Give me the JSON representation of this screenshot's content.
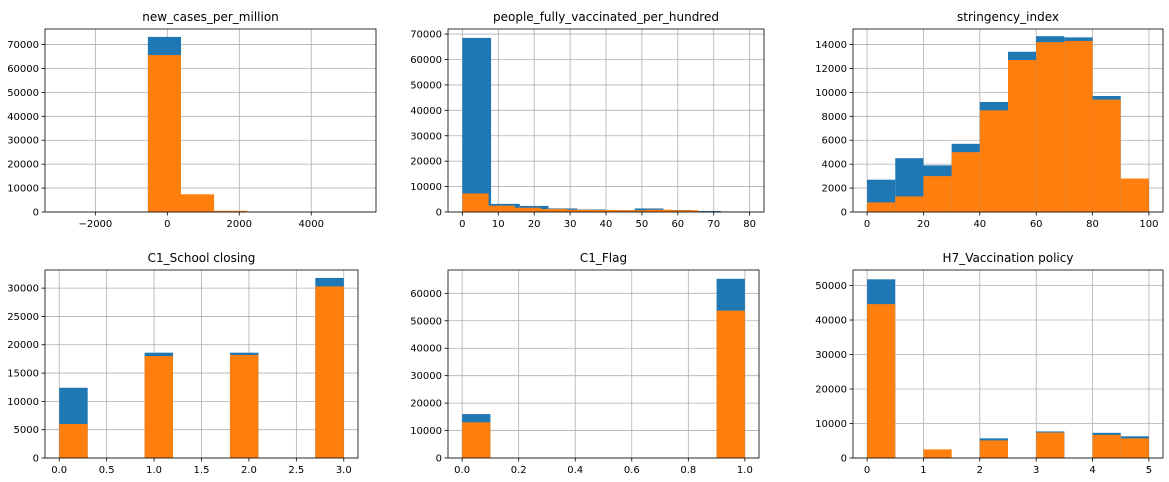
{
  "chart_data": [
    {
      "type": "bar",
      "subtype": "histogram-overlay",
      "title": "new_cases_per_million",
      "xlim": [
        -3400,
        5800
      ],
      "ylim": [
        0,
        76500
      ],
      "xticks": [
        -2000,
        0,
        2000,
        4000
      ],
      "xtick_labels": [
        "−2000",
        "0",
        "2000",
        "4000"
      ],
      "yticks": [
        0,
        10000,
        20000,
        30000,
        40000,
        50000,
        60000,
        70000
      ],
      "grid": true,
      "series": [
        {
          "color": "#1f77b4",
          "bins": [
            {
              "x0": -540,
              "x1": 380,
              "count": 73200
            }
          ]
        },
        {
          "color": "#ff7f0e",
          "bins": [
            {
              "x0": -540,
              "x1": 380,
              "count": 65600
            },
            {
              "x0": 380,
              "x1": 1300,
              "count": 7400
            },
            {
              "x0": 1300,
              "x1": 2220,
              "count": 500
            },
            {
              "x0": 2220,
              "x1": 3140,
              "count": 80
            },
            {
              "x0": 3140,
              "x1": 4060,
              "count": 30
            },
            {
              "x0": 4060,
              "x1": 4980,
              "count": 20
            }
          ]
        }
      ]
    },
    {
      "type": "bar",
      "subtype": "histogram-overlay",
      "title": "people_fully_vaccinated_per_hundred",
      "xlim": [
        -4,
        84
      ],
      "ylim": [
        0,
        72000
      ],
      "xticks": [
        0,
        10,
        20,
        30,
        40,
        50,
        60,
        70,
        80
      ],
      "xtick_labels": [
        "0",
        "10",
        "20",
        "30",
        "40",
        "50",
        "60",
        "70",
        "80"
      ],
      "yticks": [
        0,
        10000,
        20000,
        30000,
        40000,
        50000,
        60000,
        70000
      ],
      "grid": true,
      "series": [
        {
          "color": "#1f77b4",
          "bins": [
            {
              "x0": 0,
              "x1": 8,
              "count": 68500
            },
            {
              "x0": 8,
              "x1": 16,
              "count": 3200
            },
            {
              "x0": 16,
              "x1": 24,
              "count": 2400
            },
            {
              "x0": 24,
              "x1": 32,
              "count": 1400
            },
            {
              "x0": 32,
              "x1": 40,
              "count": 1000
            },
            {
              "x0": 40,
              "x1": 48,
              "count": 700
            },
            {
              "x0": 48,
              "x1": 56,
              "count": 1400
            },
            {
              "x0": 56,
              "x1": 64,
              "count": 800
            },
            {
              "x0": 64,
              "x1": 72,
              "count": 400
            },
            {
              "x0": 72,
              "x1": 80,
              "count": 100
            }
          ]
        },
        {
          "color": "#ff7f0e",
          "bins": [
            {
              "x0": 0,
              "x1": 7.3,
              "count": 7300
            },
            {
              "x0": 7.3,
              "x1": 14.6,
              "count": 2500
            },
            {
              "x0": 14.6,
              "x1": 21.9,
              "count": 1700
            },
            {
              "x0": 21.9,
              "x1": 29.2,
              "count": 1200
            },
            {
              "x0": 29.2,
              "x1": 36.5,
              "count": 900
            },
            {
              "x0": 36.5,
              "x1": 43.8,
              "count": 800
            },
            {
              "x0": 43.8,
              "x1": 51.1,
              "count": 700
            },
            {
              "x0": 51.1,
              "x1": 58.4,
              "count": 900
            },
            {
              "x0": 58.4,
              "x1": 65.7,
              "count": 700
            },
            {
              "x0": 65.7,
              "x1": 73,
              "count": 200
            }
          ]
        }
      ]
    },
    {
      "type": "bar",
      "subtype": "histogram-overlay",
      "title": "stringency_index",
      "xlim": [
        -5,
        105
      ],
      "ylim": [
        0,
        15300
      ],
      "xticks": [
        0,
        20,
        40,
        60,
        80,
        100
      ],
      "xtick_labels": [
        "0",
        "20",
        "40",
        "60",
        "80",
        "100"
      ],
      "yticks": [
        0,
        2000,
        4000,
        6000,
        8000,
        10000,
        12000,
        14000
      ],
      "grid": true,
      "series": [
        {
          "color": "#1f77b4",
          "bins": [
            {
              "x0": 0,
              "x1": 10,
              "count": 2700
            },
            {
              "x0": 10,
              "x1": 20,
              "count": 4500
            },
            {
              "x0": 20,
              "x1": 30,
              "count": 3900
            },
            {
              "x0": 30,
              "x1": 40,
              "count": 5700
            },
            {
              "x0": 40,
              "x1": 50,
              "count": 9200
            },
            {
              "x0": 50,
              "x1": 60,
              "count": 13400
            },
            {
              "x0": 60,
              "x1": 70,
              "count": 14700
            },
            {
              "x0": 70,
              "x1": 80,
              "count": 14600
            },
            {
              "x0": 80,
              "x1": 90,
              "count": 9700
            },
            {
              "x0": 90,
              "x1": 100,
              "count": 2700
            }
          ]
        },
        {
          "color": "#ff7f0e",
          "bins": [
            {
              "x0": 0,
              "x1": 10,
              "count": 800
            },
            {
              "x0": 10,
              "x1": 20,
              "count": 1300
            },
            {
              "x0": 20,
              "x1": 30,
              "count": 3000
            },
            {
              "x0": 30,
              "x1": 40,
              "count": 5000
            },
            {
              "x0": 40,
              "x1": 50,
              "count": 8500
            },
            {
              "x0": 50,
              "x1": 60,
              "count": 12700
            },
            {
              "x0": 60,
              "x1": 70,
              "count": 14200
            },
            {
              "x0": 70,
              "x1": 80,
              "count": 14300
            },
            {
              "x0": 80,
              "x1": 90,
              "count": 9400
            },
            {
              "x0": 90,
              "x1": 100,
              "count": 2800
            }
          ]
        }
      ]
    },
    {
      "type": "bar",
      "subtype": "histogram-overlay",
      "title": "C1_School closing",
      "xlim": [
        -0.15,
        3.15
      ],
      "ylim": [
        0,
        33200
      ],
      "xticks": [
        0,
        0.5,
        1,
        1.5,
        2,
        2.5,
        3
      ],
      "xtick_labels": [
        "0.0",
        "0.5",
        "1.0",
        "1.5",
        "2.0",
        "2.5",
        "3.0"
      ],
      "yticks": [
        0,
        5000,
        10000,
        15000,
        20000,
        25000,
        30000
      ],
      "grid": true,
      "series": [
        {
          "color": "#1f77b4",
          "bins": [
            {
              "x0": 0,
              "x1": 0.3,
              "count": 12400
            },
            {
              "x0": 0.9,
              "x1": 1.2,
              "count": 18600
            },
            {
              "x0": 1.8,
              "x1": 2.1,
              "count": 18600
            },
            {
              "x0": 2.7,
              "x1": 3,
              "count": 31800
            }
          ]
        },
        {
          "color": "#ff7f0e",
          "bins": [
            {
              "x0": 0,
              "x1": 0.3,
              "count": 6000
            },
            {
              "x0": 0.9,
              "x1": 1.2,
              "count": 18000
            },
            {
              "x0": 1.8,
              "x1": 2.1,
              "count": 18200
            },
            {
              "x0": 2.7,
              "x1": 3,
              "count": 30300
            }
          ]
        }
      ]
    },
    {
      "type": "bar",
      "subtype": "histogram-overlay",
      "title": "C1_Flag",
      "xlim": [
        -0.05,
        1.05
      ],
      "ylim": [
        0,
        68500
      ],
      "xticks": [
        0,
        0.2,
        0.4,
        0.6,
        0.8,
        1
      ],
      "xtick_labels": [
        "0.0",
        "0.2",
        "0.4",
        "0.6",
        "0.8",
        "1.0"
      ],
      "yticks": [
        0,
        10000,
        20000,
        30000,
        40000,
        50000,
        60000
      ],
      "grid": true,
      "series": [
        {
          "color": "#1f77b4",
          "bins": [
            {
              "x0": 0,
              "x1": 0.1,
              "count": 16000
            },
            {
              "x0": 0.9,
              "x1": 1,
              "count": 65300
            }
          ]
        },
        {
          "color": "#ff7f0e",
          "bins": [
            {
              "x0": 0,
              "x1": 0.1,
              "count": 13000
            },
            {
              "x0": 0.9,
              "x1": 1,
              "count": 53700
            }
          ]
        }
      ]
    },
    {
      "type": "bar",
      "subtype": "histogram-overlay",
      "title": "H7_Vaccination policy",
      "xlim": [
        -0.25,
        5.25
      ],
      "ylim": [
        0,
        54500
      ],
      "xticks": [
        0,
        1,
        2,
        3,
        4,
        5
      ],
      "xtick_labels": [
        "0",
        "1",
        "2",
        "3",
        "4",
        "5"
      ],
      "yticks": [
        0,
        10000,
        20000,
        30000,
        40000,
        50000
      ],
      "grid": true,
      "series": [
        {
          "color": "#1f77b4",
          "bins": [
            {
              "x0": 0,
              "x1": 0.5,
              "count": 51800
            },
            {
              "x0": 2,
              "x1": 2.5,
              "count": 5700
            },
            {
              "x0": 3,
              "x1": 3.5,
              "count": 7700
            },
            {
              "x0": 4,
              "x1": 4.5,
              "count": 7300
            },
            {
              "x0": 4.5,
              "x1": 5,
              "count": 6300
            }
          ]
        },
        {
          "color": "#ff7f0e",
          "bins": [
            {
              "x0": 0,
              "x1": 0.5,
              "count": 44600
            },
            {
              "x0": 1,
              "x1": 1.5,
              "count": 2500
            },
            {
              "x0": 2,
              "x1": 2.5,
              "count": 5100
            },
            {
              "x0": 3,
              "x1": 3.5,
              "count": 7400
            },
            {
              "x0": 4,
              "x1": 4.5,
              "count": 6700
            },
            {
              "x0": 4.5,
              "x1": 5,
              "count": 5700
            }
          ]
        }
      ]
    }
  ]
}
